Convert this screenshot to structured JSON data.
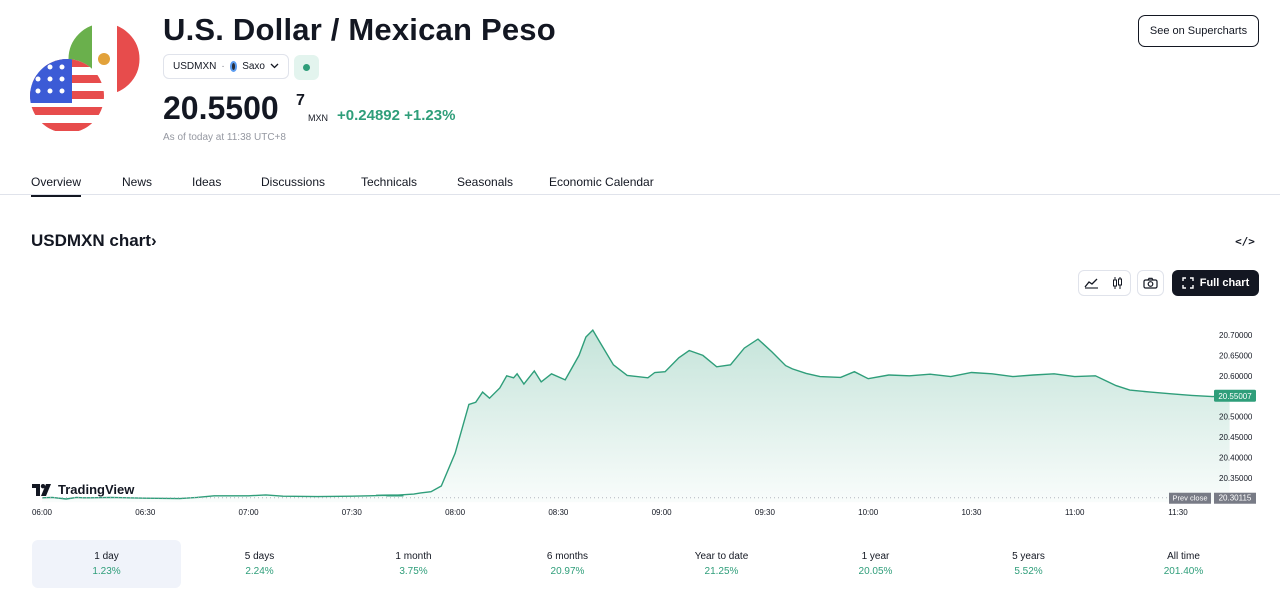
{
  "header": {
    "title": "U.S. Dollar / Mexican Peso",
    "symbol": "USDMXN",
    "separator": "·",
    "exchange": "Saxo",
    "price_main": "20.5500",
    "price_sup": "7",
    "currency": "MXN",
    "change": "+0.24892 +1.23%",
    "as_of": "As of today at 11:38 UTC+8",
    "supercharts_label": "See on Supercharts"
  },
  "tabs": [
    {
      "label": "Overview",
      "active": true
    },
    {
      "label": "News"
    },
    {
      "label": "Ideas"
    },
    {
      "label": "Discussions"
    },
    {
      "label": "Technicals"
    },
    {
      "label": "Seasonals"
    },
    {
      "label": "Economic Calendar"
    }
  ],
  "chart_section": {
    "title": "USDMXN chart",
    "title_chevron": "›",
    "embed_label": "</>",
    "full_chart_label": "Full chart",
    "tv_logo_text": "TradingView"
  },
  "chart_data": {
    "type": "area",
    "title": "",
    "xlabel": "",
    "ylabel": "",
    "x_ticks": [
      "06:00",
      "06:30",
      "07:00",
      "07:30",
      "08:00",
      "08:30",
      "09:00",
      "09:30",
      "10:00",
      "10:30",
      "11:00",
      "11:30"
    ],
    "y_ticks": [
      "20.70000",
      "20.65000",
      "20.60000",
      "20.55000",
      "20.50000",
      "20.45000",
      "20.40000",
      "20.35000"
    ],
    "ylim": [
      20.29,
      20.73
    ],
    "x_range_minutes": [
      0,
      345
    ],
    "last_price_label": "20.55007",
    "prev_close_label": "Prev close",
    "prev_close_value": "20.30115",
    "prev_close": 20.30115,
    "series": [
      {
        "x": [
          0,
          3,
          7,
          10,
          12,
          14,
          20,
          30,
          40,
          45,
          50,
          57,
          60,
          65,
          70,
          80,
          90,
          95,
          100,
          105,
          100,
          104,
          97,
          104,
          108,
          110,
          113,
          116,
          120,
          124,
          126,
          128,
          130,
          133,
          135,
          137,
          138,
          140,
          143,
          145,
          148,
          152,
          156,
          158,
          160,
          162,
          166,
          170,
          176,
          178,
          181,
          185,
          188,
          192,
          196,
          200,
          204,
          208,
          212,
          216,
          218,
          222,
          226,
          232,
          236,
          240,
          246,
          252,
          258,
          264,
          270,
          276,
          282,
          288,
          294,
          300,
          306,
          312,
          316,
          322,
          328,
          334,
          340,
          345
        ],
        "values": [
          20.301,
          20.302,
          20.298,
          20.302,
          20.301,
          20.301,
          20.302,
          20.3,
          20.299,
          20.302,
          20.306,
          20.306,
          20.306,
          20.308,
          20.305,
          20.304,
          20.305,
          20.306,
          20.307,
          20.306,
          20.306,
          20.308,
          20.307,
          20.308,
          20.31,
          20.313,
          20.316,
          20.33,
          20.41,
          20.53,
          20.535,
          20.56,
          20.545,
          20.57,
          20.6,
          20.595,
          20.605,
          20.58,
          20.612,
          20.585,
          20.605,
          20.59,
          20.65,
          20.695,
          20.712,
          20.683,
          20.627,
          20.601,
          20.595,
          20.608,
          20.61,
          20.644,
          20.662,
          20.65,
          20.622,
          20.627,
          20.668,
          20.69,
          20.659,
          20.625,
          20.617,
          20.606,
          20.598,
          20.596,
          20.61,
          20.593,
          20.602,
          20.6,
          20.604,
          20.598,
          20.608,
          20.605,
          20.598,
          20.602,
          20.605,
          20.598,
          20.6,
          20.576,
          20.565,
          20.56,
          20.556,
          20.552,
          20.549,
          20.551
        ]
      }
    ],
    "grid": false
  },
  "periods": [
    {
      "label": "1 day",
      "value": "1.23%",
      "active": true
    },
    {
      "label": "5 days",
      "value": "2.24%"
    },
    {
      "label": "1 month",
      "value": "3.75%"
    },
    {
      "label": "6 months",
      "value": "20.97%"
    },
    {
      "label": "Year to date",
      "value": "21.25%"
    },
    {
      "label": "1 year",
      "value": "20.05%"
    },
    {
      "label": "5 years",
      "value": "5.52%"
    },
    {
      "label": "All time",
      "value": "201.40%"
    }
  ],
  "colors": {
    "accent_green": "#2f9e7a",
    "text_primary": "#131722",
    "text_muted": "#9598a1"
  }
}
